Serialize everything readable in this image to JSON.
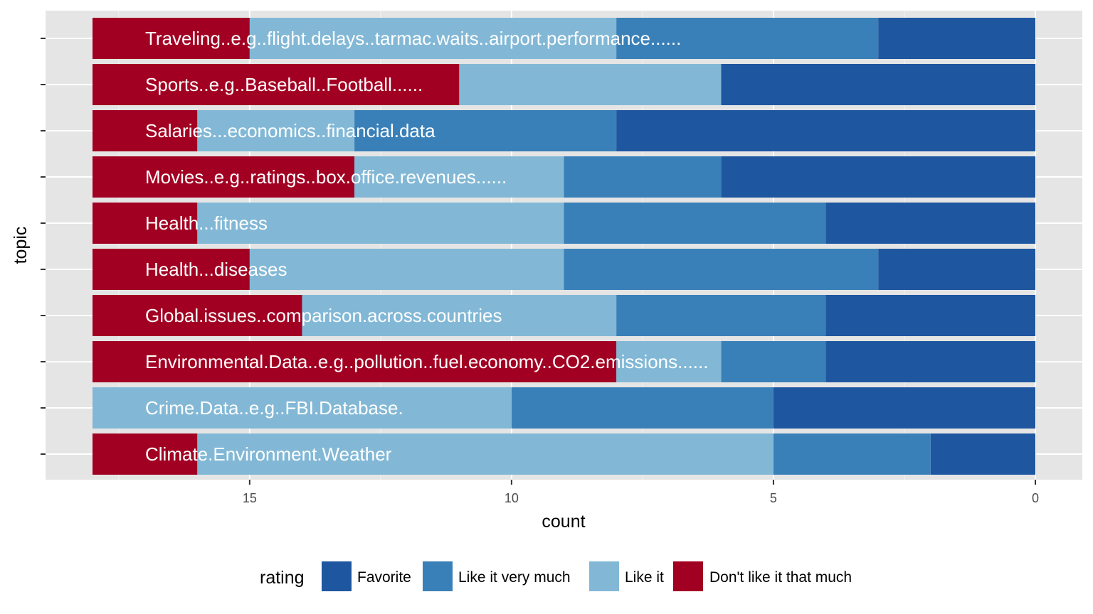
{
  "chart_data": {
    "type": "bar",
    "orientation": "horizontal",
    "stacked": true,
    "x_reversed": true,
    "xlabel": "count",
    "ylabel": "topic",
    "xlim": [
      0,
      18
    ],
    "x_ticks": [
      15,
      10,
      5,
      0
    ],
    "grid": true,
    "legend_position": "bottom",
    "legend_title": "rating",
    "categories": [
      "Traveling..e.g..flight.delays..tarmac.waits..airport.performance......",
      "Sports..e.g..Baseball..Football......",
      "Salaries...economics..financial.data",
      "Movies..e.g..ratings..box.office.revenues......",
      "Health...fitness",
      "Health...diseases",
      "Global.issues..comparison.across.countries",
      "Environmental.Data..e.g..pollution..fuel.economy..CO2.emissions......",
      "Crime.Data..e.g..FBI.Database.",
      "Climate.Environment.Weather"
    ],
    "series": [
      {
        "name": "Favorite",
        "color": "#1f56a0",
        "values": [
          3,
          6,
          8,
          6,
          4,
          3,
          4,
          4,
          5,
          2
        ]
      },
      {
        "name": "Like it very much",
        "color": "#3a80b8",
        "values": [
          5,
          0,
          5,
          3,
          5,
          6,
          4,
          2,
          5,
          3
        ]
      },
      {
        "name": "Like it",
        "color": "#82b8d6",
        "values": [
          7,
          5,
          3,
          4,
          7,
          6,
          6,
          2,
          8,
          11
        ]
      },
      {
        "name": "Don't like it that much",
        "color": "#a20022",
        "values": [
          3,
          7,
          2,
          5,
          2,
          3,
          4,
          10,
          0,
          2
        ]
      }
    ]
  }
}
